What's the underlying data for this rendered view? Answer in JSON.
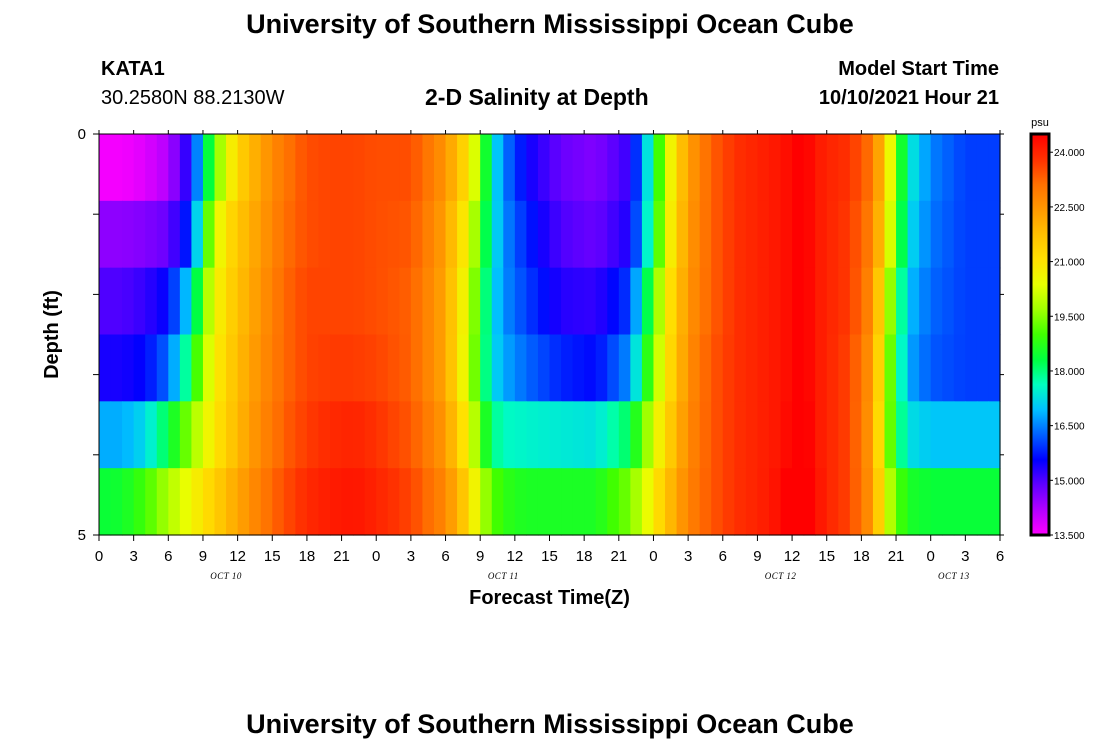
{
  "header": {
    "title": "University of Southern Mississippi Ocean Cube",
    "station_id": "KATA1",
    "station_coords": "30.2580N  88.2130W",
    "subtitle": "2-D Salinity at Depth",
    "model_start_label": "Model Start Time",
    "model_start_value": "10/10/2021 Hour 21"
  },
  "footer": {
    "title": "University of Southern Mississippi Ocean Cube"
  },
  "chart_data": {
    "type": "heatmap",
    "title": "2-D Salinity at Depth",
    "xlabel": "Forecast Time(Z)",
    "ylabel": "Depth (ft)",
    "x_tick_labels": [
      "0",
      "3",
      "6",
      "9",
      "12",
      "15",
      "18",
      "21",
      "0",
      "3",
      "6",
      "9",
      "12",
      "15",
      "18",
      "21",
      "0",
      "3",
      "6",
      "9",
      "12",
      "15",
      "18",
      "21",
      "0",
      "3",
      "6"
    ],
    "x_hours": [
      0,
      3,
      6,
      9,
      12,
      15,
      18,
      21,
      24,
      27,
      30,
      33,
      36,
      39,
      42,
      45,
      48,
      51,
      54,
      57,
      60,
      63,
      66,
      69,
      72,
      75,
      78
    ],
    "xlim": [
      0,
      78
    ],
    "day_labels": [
      {
        "label": "OCT 10",
        "hour": 11
      },
      {
        "label": "OCT 11",
        "hour": 35
      },
      {
        "label": "OCT 12",
        "hour": 59
      },
      {
        "label": "OCT 13",
        "hour": 74
      }
    ],
    "y_tick_labels": [
      "0",
      "5"
    ],
    "ylim": [
      0,
      5
    ],
    "depth_levels": [
      0,
      1,
      2,
      3,
      4,
      5
    ],
    "colorbar": {
      "unit": "psu",
      "min": 13.5,
      "max": 24.5,
      "tick_labels": [
        "24.000",
        "22.500",
        "21.000",
        "19.500",
        "18.000",
        "16.500",
        "15.000",
        "13.500"
      ],
      "tick_values": [
        24.0,
        22.5,
        21.0,
        19.5,
        18.0,
        16.5,
        15.0,
        13.5
      ],
      "colors": [
        "#ff00ff",
        "#b400ff",
        "#6000ff",
        "#0000ff",
        "#0060ff",
        "#00c0ff",
        "#00ffc0",
        "#00ff40",
        "#40ff00",
        "#a0ff00",
        "#e8ff00",
        "#ffe000",
        "#ffc000",
        "#ff9800",
        "#ff7000",
        "#ff3000",
        "#ff0000"
      ]
    },
    "time_hours": [
      0,
      2,
      4,
      6,
      8,
      9,
      10,
      11,
      12,
      14,
      16,
      18,
      20,
      22,
      24,
      27,
      30,
      32,
      33,
      34,
      35,
      37,
      40,
      43,
      46,
      48,
      49,
      50,
      51,
      53,
      55,
      57,
      59,
      60,
      61,
      62,
      63,
      65,
      67,
      68,
      69,
      70,
      72,
      75,
      78
    ],
    "rows": [
      {
        "depth": 0,
        "values": [
          13.6,
          13.6,
          13.8,
          14.2,
          15.5,
          17.5,
          19.2,
          20.3,
          21.3,
          22.3,
          23.0,
          23.5,
          23.6,
          23.6,
          23.5,
          23.5,
          22.5,
          21.0,
          19.5,
          17.5,
          16.5,
          15.5,
          14.8,
          14.6,
          15.2,
          18.0,
          20.0,
          21.3,
          22.3,
          23.3,
          23.8,
          24.0,
          24.2,
          24.4,
          24.6,
          24.2,
          24.0,
          23.8,
          23.0,
          21.5,
          19.5,
          17.5,
          16.5,
          16.0,
          16.0
        ]
      },
      {
        "depth": 1,
        "values": [
          14.5,
          14.5,
          14.6,
          14.8,
          16.0,
          18.3,
          20.2,
          21.0,
          21.6,
          22.4,
          23.1,
          23.5,
          23.6,
          23.6,
          23.5,
          23.4,
          22.3,
          20.5,
          19.0,
          17.5,
          16.6,
          15.8,
          15.0,
          14.8,
          15.4,
          18.2,
          20.2,
          21.4,
          22.4,
          23.3,
          23.8,
          24.0,
          24.2,
          24.4,
          24.6,
          24.2,
          24.0,
          23.7,
          22.8,
          21.2,
          19.2,
          17.3,
          16.4,
          16.0,
          16.0
        ]
      },
      {
        "depth": 2,
        "values": [
          15.0,
          15.0,
          15.2,
          15.6,
          17.3,
          19.3,
          20.5,
          21.2,
          21.7,
          22.5,
          23.2,
          23.6,
          23.6,
          23.6,
          23.5,
          23.3,
          22.2,
          20.2,
          18.7,
          17.3,
          16.6,
          16.0,
          15.3,
          15.2,
          16.0,
          19.0,
          20.6,
          21.6,
          22.5,
          23.3,
          23.8,
          24.0,
          24.2,
          24.4,
          24.6,
          24.2,
          24.0,
          23.7,
          22.6,
          20.6,
          18.6,
          17.0,
          16.3,
          16.0,
          16.0
        ]
      },
      {
        "depth": 3,
        "values": [
          15.4,
          15.4,
          15.6,
          16.3,
          18.3,
          19.8,
          20.7,
          21.3,
          21.8,
          22.6,
          23.2,
          23.6,
          23.7,
          23.7,
          23.6,
          23.3,
          22.2,
          20.1,
          18.6,
          17.3,
          16.8,
          16.3,
          15.8,
          15.6,
          16.6,
          19.5,
          20.8,
          21.7,
          22.6,
          23.4,
          23.8,
          24.0,
          24.2,
          24.4,
          24.6,
          24.2,
          24.0,
          23.6,
          22.4,
          20.3,
          18.3,
          16.8,
          16.2,
          16.0,
          16.0
        ]
      },
      {
        "depth": 4,
        "values": [
          16.8,
          16.8,
          17.2,
          18.3,
          19.6,
          20.3,
          20.9,
          21.4,
          21.9,
          22.7,
          23.3,
          23.7,
          23.9,
          24.0,
          23.8,
          23.4,
          22.4,
          20.6,
          19.2,
          18.0,
          17.6,
          17.5,
          17.4,
          17.3,
          18.2,
          20.2,
          21.2,
          21.9,
          22.7,
          23.4,
          23.8,
          24.0,
          24.2,
          24.5,
          24.7,
          24.2,
          24.0,
          23.6,
          22.3,
          20.1,
          18.4,
          17.3,
          17.0,
          17.0,
          17.0
        ]
      },
      {
        "depth": 5,
        "values": [
          18.4,
          18.5,
          19.0,
          19.8,
          20.6,
          21.0,
          21.4,
          21.8,
          22.2,
          22.9,
          23.5,
          23.9,
          24.1,
          24.2,
          24.0,
          23.6,
          22.7,
          21.3,
          20.0,
          19.2,
          18.8,
          18.6,
          18.6,
          18.6,
          19.4,
          20.8,
          21.6,
          22.2,
          22.8,
          23.4,
          23.8,
          24.0,
          24.3,
          24.7,
          24.8,
          24.3,
          24.0,
          23.6,
          22.4,
          20.5,
          19.2,
          18.6,
          18.4,
          18.4,
          18.4
        ]
      }
    ]
  }
}
